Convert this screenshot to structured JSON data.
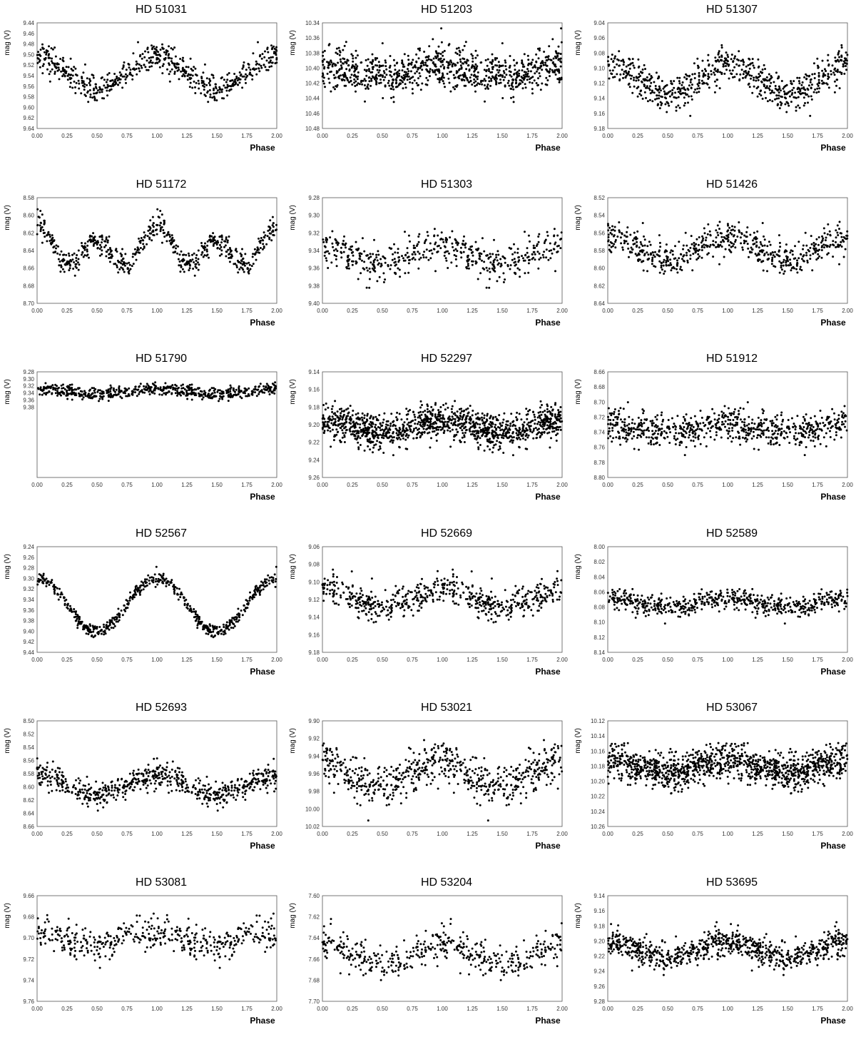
{
  "chart_data": [
    {
      "type": "scatter",
      "title": "HD 51031",
      "ylabel": "mag (V)",
      "xlabel": "Phase",
      "xlim": [
        0,
        2
      ],
      "xticks": [
        "0.00",
        "0.25",
        "0.50",
        "0.75",
        "1.00",
        "1.25",
        "1.50",
        "1.75",
        "2.00"
      ],
      "ylim": [
        9.44,
        9.64
      ],
      "yticks": [
        "9.44",
        "9.46",
        "9.48",
        "9.50",
        "9.52",
        "9.54",
        "9.56",
        "9.58",
        "9.60",
        "9.62",
        "9.64"
      ],
      "y_inverted": true,
      "model": {
        "mean": 9.535,
        "harmonics": [
          {
            "k": 1,
            "amp": 0.03,
            "phase_max": 0.0
          }
        ],
        "scatter": 0.012,
        "points_per_cycle": 300
      }
    },
    {
      "type": "scatter",
      "title": "HD 51203",
      "ylabel": "mag (V)",
      "xlabel": "Phase",
      "xlim": [
        0,
        2
      ],
      "xticks": [
        "0.00",
        "0.25",
        "0.50",
        "0.75",
        "1.00",
        "1.25",
        "1.50",
        "1.75",
        "2.00"
      ],
      "ylim": [
        10.34,
        10.48
      ],
      "yticks": [
        "10.34",
        "10.36",
        "10.38",
        "10.40",
        "10.42",
        "10.44",
        "10.46",
        "10.48"
      ],
      "y_inverted": true,
      "model": {
        "mean": 10.405,
        "harmonics": [
          {
            "k": 1,
            "amp": 0.008,
            "phase_max": 0.0
          }
        ],
        "scatter": 0.014,
        "points_per_cycle": 450
      }
    },
    {
      "type": "scatter",
      "title": "HD 51307",
      "ylabel": "mag (V)",
      "xlabel": "Phase",
      "xlim": [
        0,
        2
      ],
      "xticks": [
        "0.00",
        "0.25",
        "0.50",
        "0.75",
        "1.00",
        "1.25",
        "1.50",
        "1.75",
        "2.00"
      ],
      "ylim": [
        9.04,
        9.18
      ],
      "yticks": [
        "9.04",
        "9.06",
        "9.08",
        "9.10",
        "9.12",
        "9.14",
        "9.16",
        "9.18"
      ],
      "y_inverted": true,
      "model": {
        "mean": 9.115,
        "harmonics": [
          {
            "k": 1,
            "amp": 0.018,
            "phase_max": 0.0
          }
        ],
        "scatter": 0.012,
        "points_per_cycle": 350
      }
    },
    {
      "type": "scatter",
      "title": "HD 51172",
      "ylabel": "mag (V)",
      "xlabel": "Phase",
      "xlim": [
        0,
        2
      ],
      "xticks": [
        "0.00",
        "0.25",
        "0.50",
        "0.75",
        "1.00",
        "1.25",
        "1.50",
        "1.75",
        "2.00"
      ],
      "ylim": [
        8.58,
        8.7
      ],
      "yticks": [
        "8.58",
        "8.60",
        "8.62",
        "8.64",
        "8.66",
        "8.68",
        "8.70"
      ],
      "y_inverted": true,
      "model": {
        "mean": 8.638,
        "harmonics": [
          {
            "k": 1,
            "amp": 0.01,
            "phase_max": 0.0
          },
          {
            "k": 2,
            "amp": 0.018,
            "phase_max": 0.0
          }
        ],
        "scatter": 0.007,
        "points_per_cycle": 300
      }
    },
    {
      "type": "scatter",
      "title": "HD 51303",
      "ylabel": "mag (V)",
      "xlabel": "Phase",
      "xlim": [
        0,
        2
      ],
      "xticks": [
        "0.00",
        "0.25",
        "0.50",
        "0.75",
        "1.00",
        "1.25",
        "1.50",
        "1.75",
        "2.00"
      ],
      "ylim": [
        9.28,
        9.4
      ],
      "yticks": [
        "9.28",
        "9.30",
        "9.32",
        "9.34",
        "9.36",
        "9.38",
        "9.40"
      ],
      "y_inverted": true,
      "model": {
        "mean": 9.345,
        "harmonics": [
          {
            "k": 1,
            "amp": 0.01,
            "phase_max": 0.0
          }
        ],
        "scatter": 0.009,
        "points_per_cycle": 250
      }
    },
    {
      "type": "scatter",
      "title": "HD 51426",
      "ylabel": "mag (V)",
      "xlabel": "Phase",
      "xlim": [
        0,
        2
      ],
      "xticks": [
        "0.00",
        "0.25",
        "0.50",
        "0.75",
        "1.00",
        "1.25",
        "1.50",
        "1.75",
        "2.00"
      ],
      "ylim": [
        8.52,
        8.64
      ],
      "yticks": [
        "8.52",
        "8.54",
        "8.56",
        "8.58",
        "8.60",
        "8.62",
        "8.64"
      ],
      "y_inverted": true,
      "model": {
        "mean": 8.578,
        "harmonics": [
          {
            "k": 1,
            "amp": 0.012,
            "phase_max": 0.0
          }
        ],
        "scatter": 0.009,
        "points_per_cycle": 300
      }
    },
    {
      "type": "scatter",
      "title": "HD 51790",
      "ylabel": "mag (V)",
      "xlabel": "Phase",
      "xlim": [
        0,
        2
      ],
      "xticks": [
        "0.00",
        "0.25",
        "0.50",
        "0.75",
        "1.00",
        "1.25",
        "1.50",
        "1.75",
        "2.00"
      ],
      "ylim": [
        9.28,
        9.58
      ],
      "yticks": [
        "9.28",
        "9.30",
        "9.32",
        "9.34",
        "9.36",
        "9.38"
      ],
      "y_inverted": true,
      "model": {
        "mean": 9.335,
        "harmonics": [
          {
            "k": 1,
            "amp": 0.008,
            "phase_max": 0.0
          }
        ],
        "scatter": 0.009,
        "points_per_cycle": 300
      }
    },
    {
      "type": "scatter",
      "title": "HD 52297",
      "ylabel": "mag (V)",
      "xlabel": "Phase",
      "xlim": [
        0,
        2
      ],
      "xticks": [
        "0.00",
        "0.25",
        "0.50",
        "0.75",
        "1.00",
        "1.25",
        "1.50",
        "1.75",
        "2.00"
      ],
      "ylim": [
        9.14,
        9.26
      ],
      "yticks": [
        "9.14",
        "9.16",
        "9.18",
        "9.20",
        "9.22",
        "9.24",
        "9.26"
      ],
      "y_inverted": true,
      "model": {
        "mean": 9.202,
        "harmonics": [
          {
            "k": 1,
            "amp": 0.008,
            "phase_max": 0.0
          }
        ],
        "scatter": 0.01,
        "points_per_cycle": 600
      }
    },
    {
      "type": "scatter",
      "title": "HD 51912",
      "ylabel": "mag (V)",
      "xlabel": "Phase",
      "xlim": [
        0,
        2
      ],
      "xticks": [
        "0.00",
        "0.25",
        "0.50",
        "0.75",
        "1.00",
        "1.25",
        "1.50",
        "1.75",
        "2.00"
      ],
      "ylim": [
        8.66,
        8.8
      ],
      "yticks": [
        "8.66",
        "8.68",
        "8.70",
        "8.72",
        "8.74",
        "8.76",
        "8.78",
        "8.80"
      ],
      "y_inverted": true,
      "model": {
        "mean": 8.735,
        "harmonics": [
          {
            "k": 1,
            "amp": 0.006,
            "phase_max": 0.0
          }
        ],
        "scatter": 0.011,
        "points_per_cycle": 350
      }
    },
    {
      "type": "scatter",
      "title": "HD 52567",
      "ylabel": "mag (V)",
      "xlabel": "Phase",
      "xlim": [
        0,
        2
      ],
      "xticks": [
        "0.00",
        "0.25",
        "0.50",
        "0.75",
        "1.00",
        "1.25",
        "1.50",
        "1.75",
        "2.00"
      ],
      "ylim": [
        9.24,
        9.44
      ],
      "yticks": [
        "9.24",
        "9.26",
        "9.28",
        "9.30",
        "9.32",
        "9.34",
        "9.36",
        "9.38",
        "9.40",
        "9.42",
        "9.44"
      ],
      "y_inverted": true,
      "model": {
        "mean": 9.35,
        "harmonics": [
          {
            "k": 1,
            "amp": 0.05,
            "phase_max": 0.0
          }
        ],
        "scatter": 0.006,
        "points_per_cycle": 300
      }
    },
    {
      "type": "scatter",
      "title": "HD 52669",
      "ylabel": "mag (V)",
      "xlabel": "Phase",
      "xlim": [
        0,
        2
      ],
      "xticks": [
        "0.00",
        "0.25",
        "0.50",
        "0.75",
        "1.00",
        "1.25",
        "1.50",
        "1.75",
        "2.00"
      ],
      "ylim": [
        9.06,
        9.18
      ],
      "yticks": [
        "9.06",
        "9.08",
        "9.10",
        "9.12",
        "9.14",
        "9.16",
        "9.18"
      ],
      "y_inverted": true,
      "model": {
        "mean": 9.118,
        "harmonics": [
          {
            "k": 1,
            "amp": 0.012,
            "phase_max": 0.0
          }
        ],
        "scatter": 0.009,
        "points_per_cycle": 300
      }
    },
    {
      "type": "scatter",
      "title": "HD 52589",
      "ylabel": "mag (V)",
      "xlabel": "Phase",
      "xlim": [
        0,
        2
      ],
      "xticks": [
        "0.00",
        "0.25",
        "0.50",
        "0.75",
        "1.00",
        "1.25",
        "1.50",
        "1.75",
        "2.00"
      ],
      "ylim": [
        8.0,
        8.14
      ],
      "yticks": [
        "8.00",
        "8.02",
        "8.04",
        "8.06",
        "8.08",
        "8.10",
        "8.12",
        "8.14"
      ],
      "y_inverted": true,
      "model": {
        "mean": 8.075,
        "harmonics": [
          {
            "k": 1,
            "amp": 0.006,
            "phase_max": 0.0
          }
        ],
        "scatter": 0.007,
        "points_per_cycle": 300
      }
    },
    {
      "type": "scatter",
      "title": "HD 52693",
      "ylabel": "mag (V)",
      "xlabel": "Phase",
      "xlim": [
        0,
        2
      ],
      "xticks": [
        "0.00",
        "0.25",
        "0.50",
        "0.75",
        "1.00",
        "1.25",
        "1.50",
        "1.75",
        "2.00"
      ],
      "ylim": [
        8.5,
        8.66
      ],
      "yticks": [
        "8.50",
        "8.52",
        "8.54",
        "8.56",
        "8.58",
        "8.60",
        "8.62",
        "8.64",
        "8.66"
      ],
      "y_inverted": true,
      "model": {
        "mean": 8.598,
        "harmonics": [
          {
            "k": 1,
            "amp": 0.014,
            "phase_max": 0.0
          }
        ],
        "scatter": 0.01,
        "points_per_cycle": 320
      }
    },
    {
      "type": "scatter",
      "title": "HD 53021",
      "ylabel": "mag (V)",
      "xlabel": "Phase",
      "xlim": [
        0,
        2
      ],
      "xticks": [
        "0.00",
        "0.25",
        "0.50",
        "0.75",
        "1.00",
        "1.25",
        "1.50",
        "1.75",
        "2.00"
      ],
      "ylim": [
        9.9,
        10.02
      ],
      "yticks": [
        "9.90",
        "9.92",
        "9.94",
        "9.96",
        "9.98",
        "10.00",
        "10.02"
      ],
      "y_inverted": true,
      "model": {
        "mean": 9.96,
        "harmonics": [
          {
            "k": 1,
            "amp": 0.015,
            "phase_max": 0.0
          }
        ],
        "scatter": 0.012,
        "points_per_cycle": 320
      }
    },
    {
      "type": "scatter",
      "title": "HD 53067",
      "ylabel": "mag (V)",
      "xlabel": "Phase",
      "xlim": [
        0,
        2
      ],
      "xticks": [
        "0.00",
        "0.25",
        "0.50",
        "0.75",
        "1.00",
        "1.25",
        "1.50",
        "1.75",
        "2.00"
      ],
      "ylim": [
        10.12,
        10.26
      ],
      "yticks": [
        "10.12",
        "10.14",
        "10.16",
        "10.18",
        "10.20",
        "10.22",
        "10.24",
        "10.26"
      ],
      "y_inverted": true,
      "model": {
        "mean": 10.18,
        "harmonics": [
          {
            "k": 1,
            "amp": 0.008,
            "phase_max": 0.0
          }
        ],
        "scatter": 0.012,
        "points_per_cycle": 600
      }
    },
    {
      "type": "scatter",
      "title": "HD 53081",
      "ylabel": "mag (V)",
      "xlabel": "Phase",
      "xlim": [
        0,
        2
      ],
      "xticks": [
        "0.00",
        "0.25",
        "0.50",
        "0.75",
        "1.00",
        "1.25",
        "1.50",
        "1.75",
        "2.00"
      ],
      "ylim": [
        9.66,
        9.76
      ],
      "yticks": [
        "9.66",
        "9.68",
        "9.70",
        "9.72",
        "9.74",
        "9.76"
      ],
      "y_inverted": true,
      "model": {
        "mean": 9.7,
        "harmonics": [
          {
            "k": 1,
            "amp": 0.006,
            "phase_max": 0.0
          }
        ],
        "scatter": 0.008,
        "points_per_cycle": 220
      }
    },
    {
      "type": "scatter",
      "title": "HD 53204",
      "ylabel": "mag (V)",
      "xlabel": "Phase",
      "xlim": [
        0,
        2
      ],
      "xticks": [
        "0.00",
        "0.25",
        "0.50",
        "0.75",
        "1.00",
        "1.25",
        "1.50",
        "1.75",
        "2.00"
      ],
      "ylim": [
        7.6,
        7.7
      ],
      "yticks": [
        "7.60",
        "7.62",
        "7.64",
        "7.66",
        "7.68",
        "7.70"
      ],
      "y_inverted": true,
      "model": {
        "mean": 7.655,
        "harmonics": [
          {
            "k": 1,
            "amp": 0.01,
            "phase_max": 0.0
          }
        ],
        "scatter": 0.008,
        "points_per_cycle": 220
      }
    },
    {
      "type": "scatter",
      "title": "HD 53695",
      "ylabel": "mag (V)",
      "xlabel": "Phase",
      "xlim": [
        0,
        2
      ],
      "xticks": [
        "0.00",
        "0.25",
        "0.50",
        "0.75",
        "1.00",
        "1.25",
        "1.50",
        "1.75",
        "2.00"
      ],
      "ylim": [
        9.14,
        9.28
      ],
      "yticks": [
        "9.14",
        "9.16",
        "9.18",
        "9.20",
        "9.22",
        "9.24",
        "9.26",
        "9.28"
      ],
      "y_inverted": true,
      "model": {
        "mean": 9.212,
        "harmonics": [
          {
            "k": 1,
            "amp": 0.01,
            "phase_max": 0.0
          }
        ],
        "scatter": 0.009,
        "points_per_cycle": 400
      }
    }
  ]
}
